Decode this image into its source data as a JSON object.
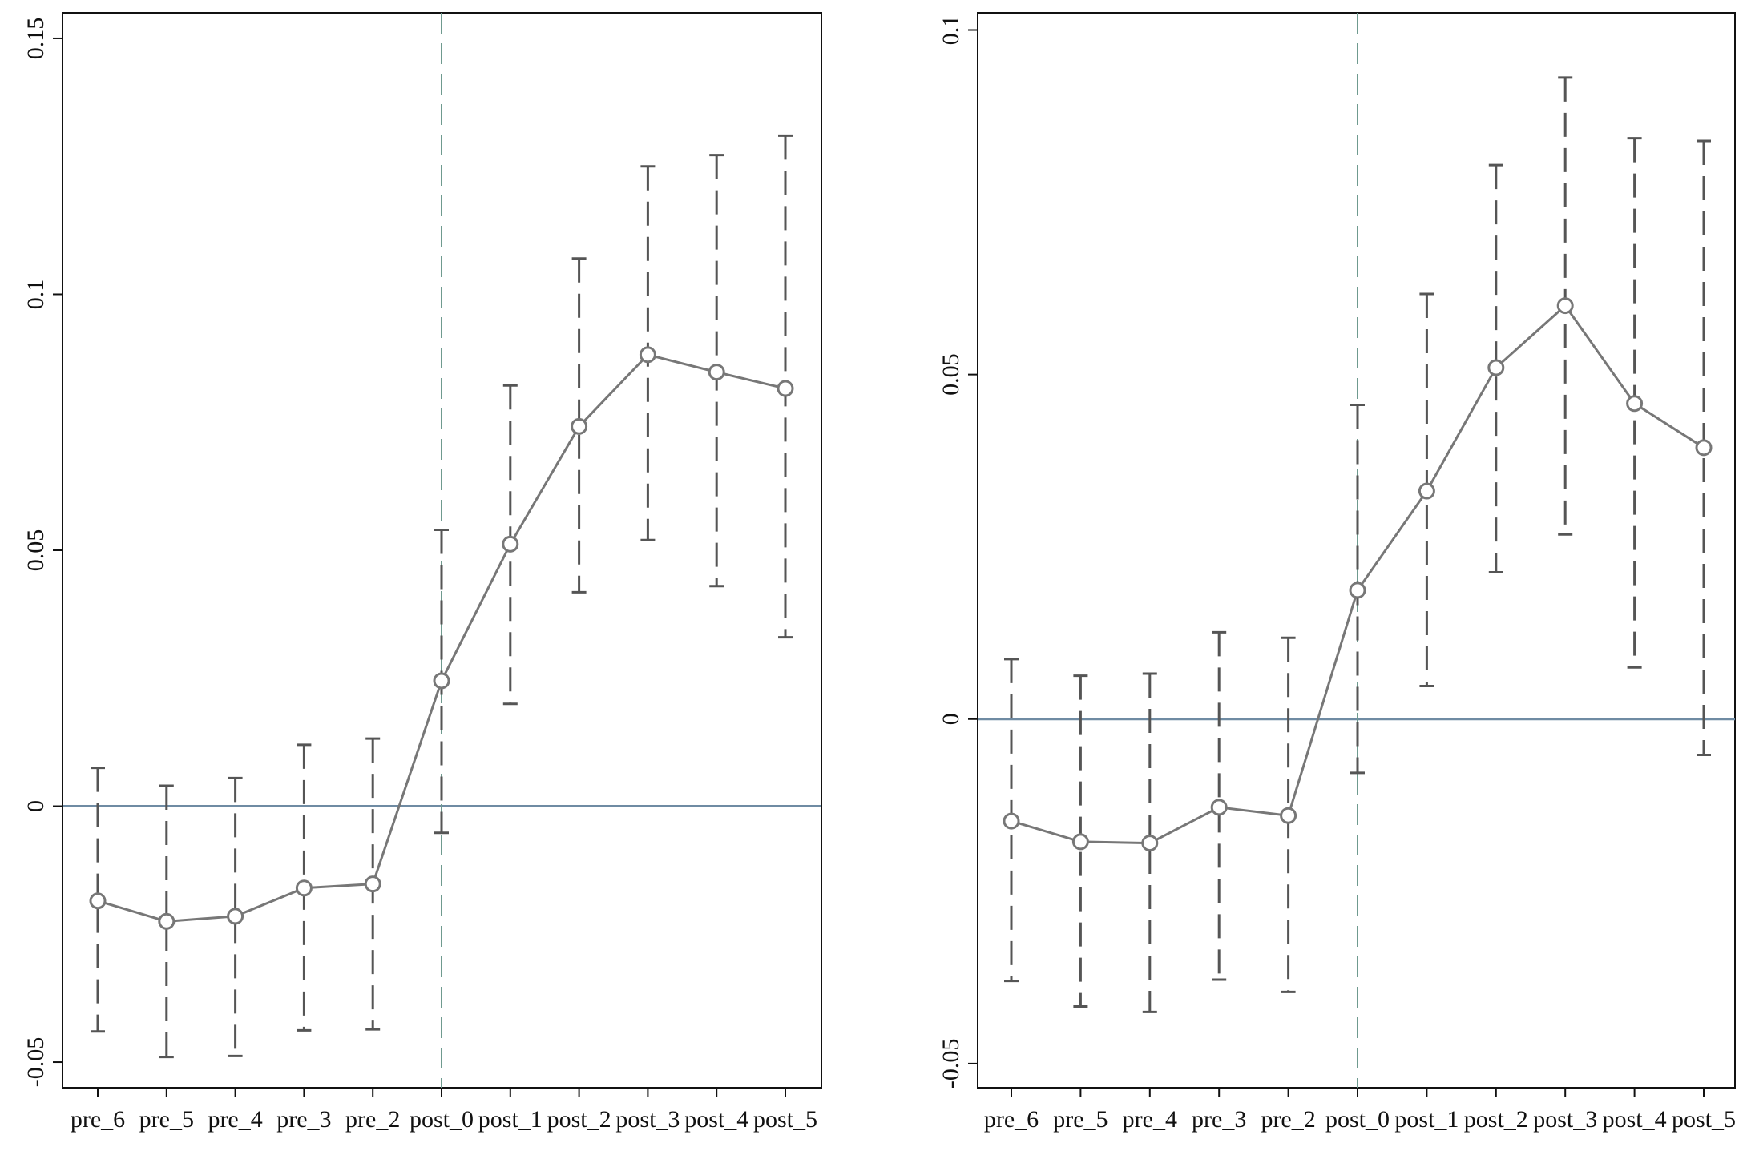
{
  "chart_data": [
    {
      "type": "line",
      "title": "",
      "xlabel": "",
      "ylabel": "",
      "categories": [
        "pre_6",
        "pre_5",
        "pre_4",
        "pre_3",
        "pre_2",
        "post_0",
        "post_1",
        "post_2",
        "post_3",
        "post_4",
        "post_5"
      ],
      "series": [
        {
          "values": [
            -0.0185,
            -0.0225,
            -0.0215,
            -0.016,
            -0.0152,
            0.0245,
            0.0512,
            0.0742,
            0.0882,
            0.0848,
            0.0816
          ],
          "ci_low": [
            -0.044,
            -0.049,
            -0.0488,
            -0.0438,
            -0.0436,
            -0.0052,
            0.02,
            0.0418,
            0.052,
            0.043,
            0.033
          ],
          "ci_high": [
            0.0075,
            0.004,
            0.0055,
            0.012,
            0.0132,
            0.054,
            0.0822,
            0.107,
            0.125,
            0.1272,
            0.131
          ]
        }
      ],
      "ylim": [
        -0.055,
        0.155
      ],
      "yticks": [
        -0.05,
        0,
        0.05,
        0.1,
        0.15
      ],
      "ytick_labels": [
        "-0.05",
        "0",
        "0.05",
        "0.1",
        "0.15"
      ],
      "reference_line_y": 0,
      "event_line_x": "post_0",
      "grid": false,
      "legend": "none",
      "colors": {
        "series": "#777777",
        "zero_line": "#6f8ba3",
        "event_line": "#6f9a8f",
        "ci": "#555555",
        "axis": "#111111"
      }
    },
    {
      "type": "line",
      "title": "",
      "xlabel": "",
      "ylabel": "",
      "categories": [
        "pre_6",
        "pre_5",
        "pre_4",
        "pre_3",
        "pre_2",
        "post_0",
        "post_1",
        "post_2",
        "post_3",
        "post_4",
        "post_5"
      ],
      "series": [
        {
          "values": [
            -0.0148,
            -0.0178,
            -0.018,
            -0.0128,
            -0.014,
            0.0187,
            0.0331,
            0.051,
            0.06,
            0.0458,
            0.0394
          ],
          "ci_low": [
            -0.038,
            -0.0417,
            -0.0425,
            -0.0378,
            -0.0396,
            -0.0078,
            0.0048,
            0.0213,
            0.0268,
            0.0075,
            -0.0052
          ],
          "ci_high": [
            0.0087,
            0.0063,
            0.0066,
            0.0126,
            0.0118,
            0.0456,
            0.0617,
            0.0804,
            0.0931,
            0.0843,
            0.0839
          ]
        }
      ],
      "ylim": [
        -0.0535,
        0.1025
      ],
      "yticks": [
        -0.05,
        0,
        0.05,
        0.1
      ],
      "ytick_labels": [
        "-0.05",
        "0",
        "0.05",
        "0.1"
      ],
      "reference_line_y": 0,
      "event_line_x": "post_0",
      "grid": false,
      "legend": "none",
      "colors": {
        "series": "#777777",
        "zero_line": "#6f8ba3",
        "event_line": "#6f9a8f",
        "ci": "#555555",
        "axis": "#111111"
      }
    }
  ]
}
